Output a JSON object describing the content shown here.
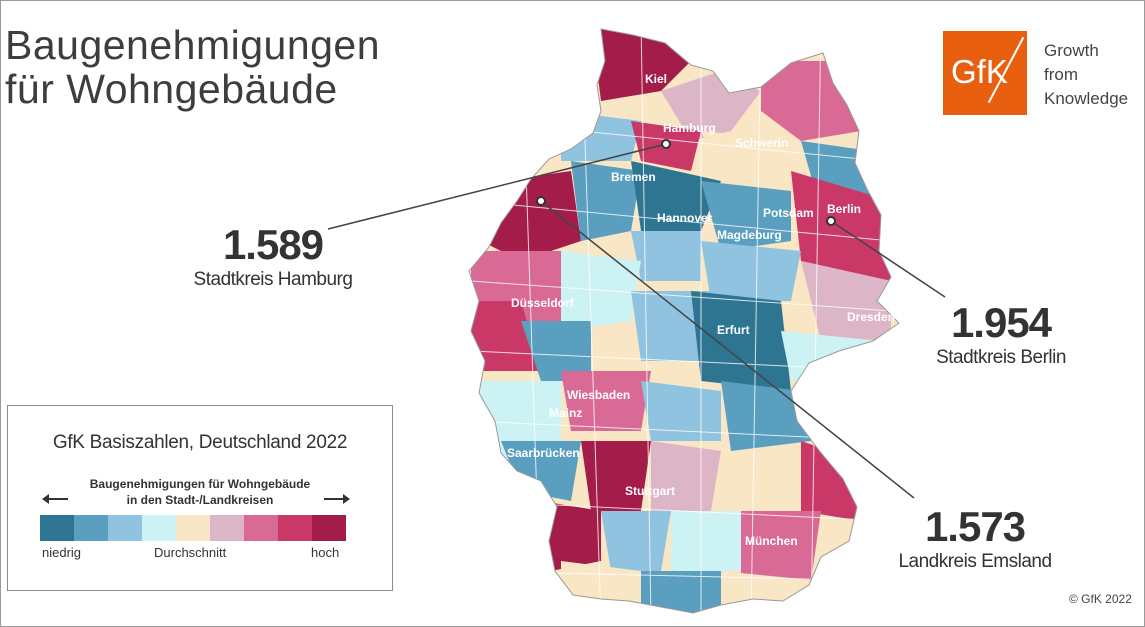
{
  "title": {
    "line1": "Baugenehmigungen",
    "line2": "für Wohngebäude"
  },
  "logo": {
    "text": "GfK",
    "tagline": [
      "Growth",
      "from",
      "Knowledge"
    ],
    "color": "#e8600f"
  },
  "callouts": [
    {
      "id": "hamburg",
      "value": "1.589",
      "label": "Stadtkreis Hamburg"
    },
    {
      "id": "berlin",
      "value": "1.954",
      "label": "Stadtkreis Berlin"
    },
    {
      "id": "emsland",
      "value": "1.573",
      "label": "Landkreis Emsland"
    }
  ],
  "cities": [
    "Kiel",
    "Hamburg",
    "Schwerin",
    "Bremen",
    "Potsdam",
    "Berlin",
    "Hannover",
    "Magdeburg",
    "Düsseldorf",
    "Erfurt",
    "Dresden",
    "Wiesbaden",
    "Mainz",
    "Saarbrücken",
    "Stuttgart",
    "München"
  ],
  "legend": {
    "title": "GfK Basiszahlen, Deutschland 2022",
    "subtitle_line1": "Baugenehmigungen für Wohngebäude",
    "subtitle_line2": "in den Stadt-/Landkreisen",
    "low_label": "niedrig",
    "mid_label": "Durchschnitt",
    "high_label": "hoch",
    "colors": [
      "#2e7592",
      "#5a9ec0",
      "#8fc3df",
      "#cdf2f4",
      "#f8e6c4",
      "#dcb6c7",
      "#d96a96",
      "#c93866",
      "#a41c49"
    ]
  },
  "copyright": "© GfK 2022"
}
